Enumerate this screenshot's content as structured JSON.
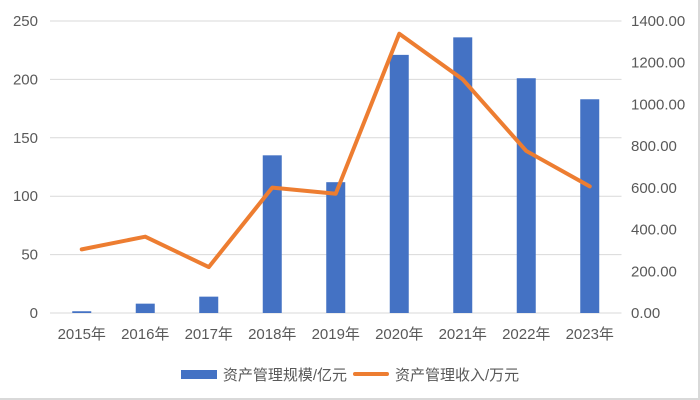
{
  "chart_data": {
    "type": "bar+line",
    "title": "",
    "categories": [
      "2015年",
      "2016年",
      "2017年",
      "2018年",
      "2019年",
      "2020年",
      "2021年",
      "2022年",
      "2023年"
    ],
    "series": [
      {
        "name": "资产管理规模/亿元",
        "type": "bar",
        "axis": "left",
        "color": "#4472C4",
        "values": [
          1.5,
          8,
          14,
          135,
          112,
          221,
          236,
          201,
          183
        ]
      },
      {
        "name": "资产管理收入/万元",
        "type": "line",
        "axis": "right",
        "color": "#ED7D31",
        "values": [
          305,
          366,
          220,
          601,
          572,
          1339,
          1120,
          777,
          607
        ]
      }
    ],
    "left_axis": {
      "ylim": [
        0,
        250
      ],
      "ticks": [
        "0",
        "50",
        "100",
        "150",
        "200",
        "250"
      ]
    },
    "right_axis": {
      "ylim": [
        0,
        1400
      ],
      "ticks": [
        "0.00",
        "200.00",
        "400.00",
        "600.00",
        "800.00",
        "1000.00",
        "1200.00",
        "1400.00"
      ]
    },
    "xlabel": "",
    "ylabel": "",
    "grid": true,
    "legend_position": "bottom"
  },
  "legend": {
    "bar_label": "资产管理规模/亿元",
    "line_label": "资产管理收入/万元"
  }
}
